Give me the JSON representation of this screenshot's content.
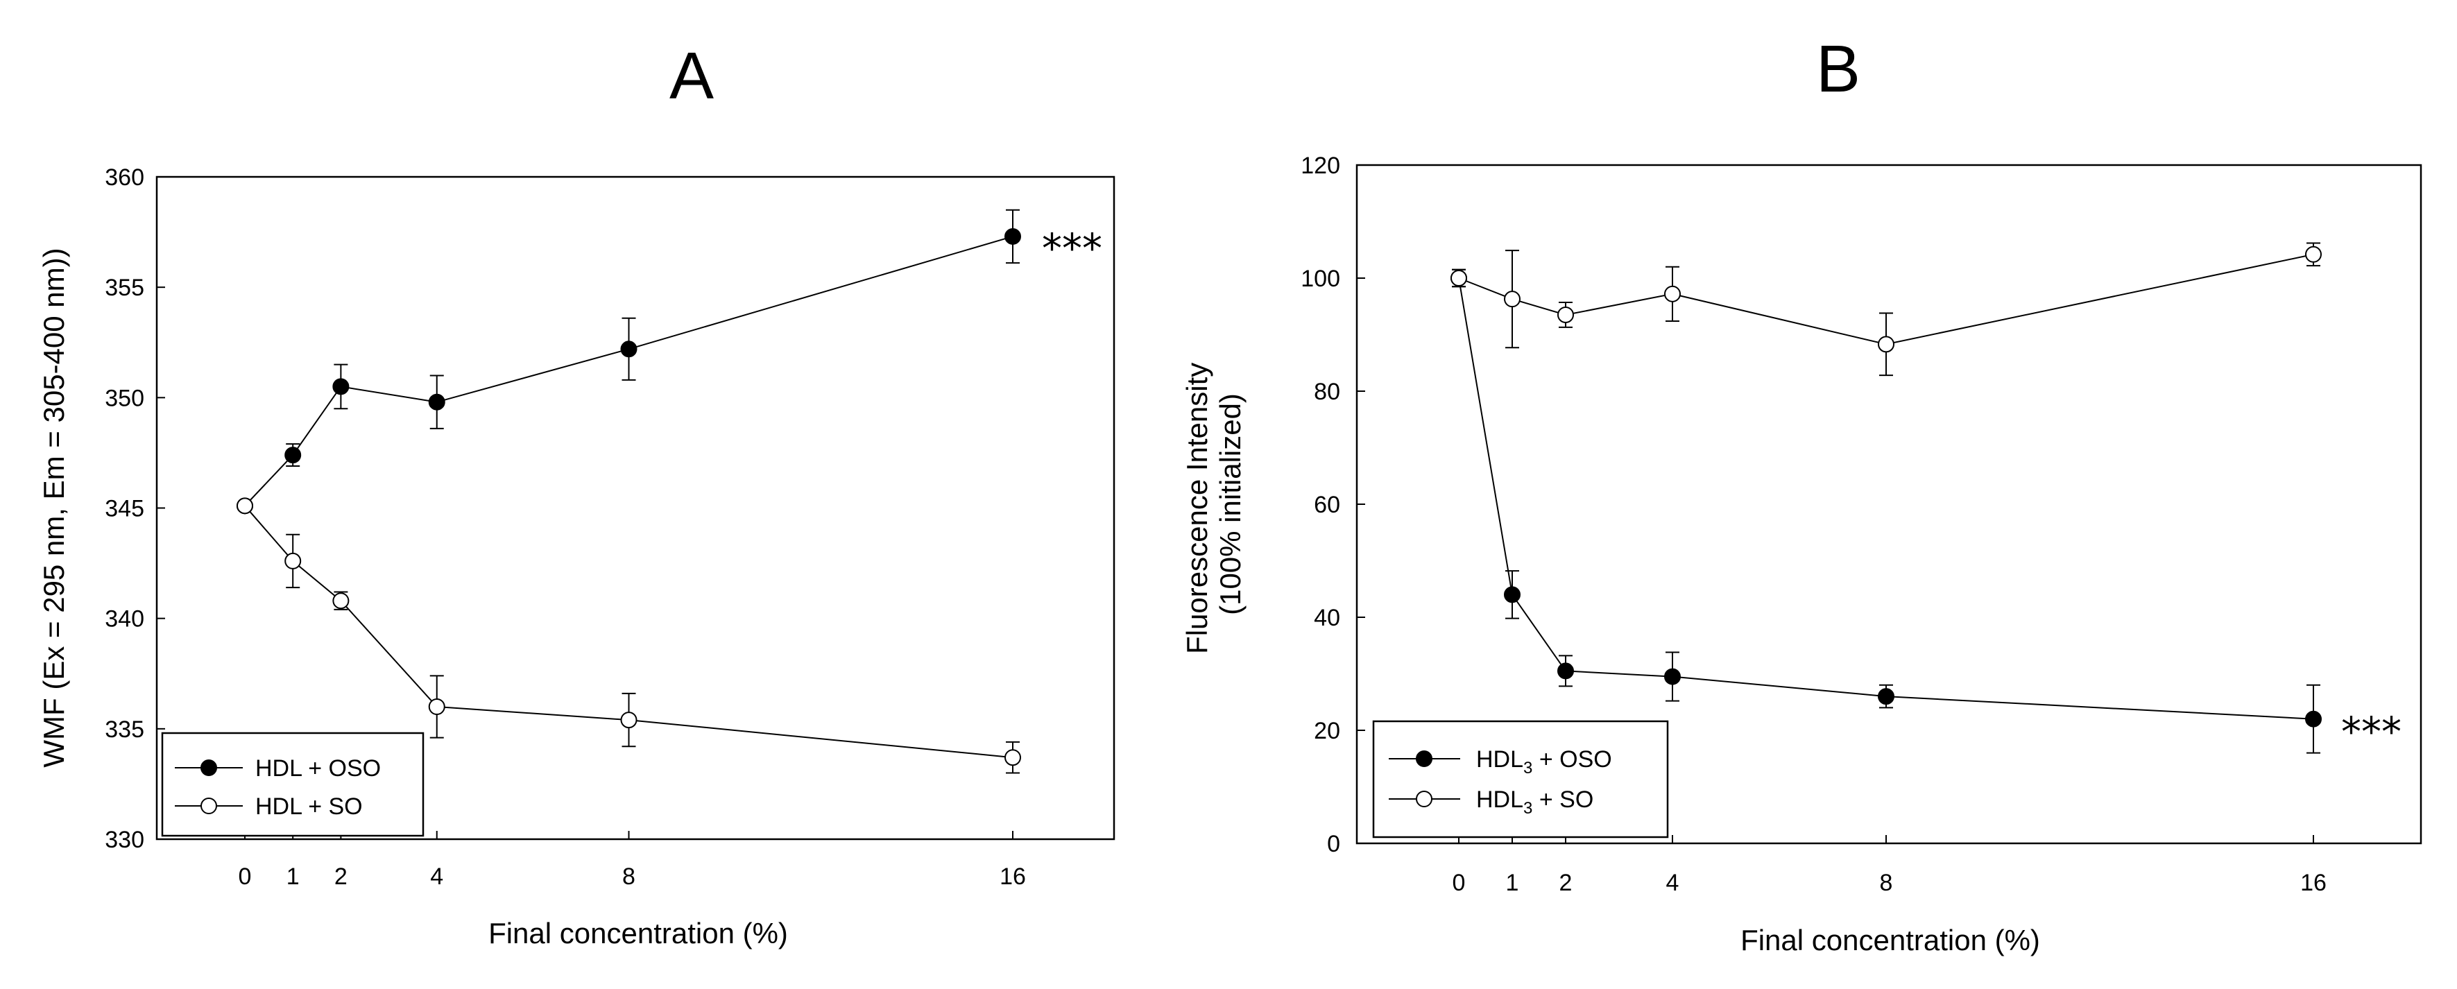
{
  "chart_data": [
    {
      "panel": "A",
      "type": "line",
      "title": "A",
      "xlabel": "Final concentration (%)",
      "ylabel": "WMF (Ex = 295 nm, Em = 305-400 nm))",
      "ylim": [
        330,
        360
      ],
      "yticks": [
        "330",
        "335",
        "340",
        "345",
        "350",
        "355",
        "360"
      ],
      "x": [
        0,
        1,
        2,
        4,
        8,
        16
      ],
      "xticks": [
        "0",
        "1",
        "2",
        "4",
        "8",
        "16"
      ],
      "series": [
        {
          "name": "HDL + OSO",
          "marker": "filled",
          "values": [
            345.1,
            347.4,
            350.5,
            349.8,
            352.2,
            357.3
          ],
          "errors": [
            0,
            0.5,
            1.0,
            1.2,
            1.4,
            1.2
          ]
        },
        {
          "name": "HDL + SO",
          "marker": "open",
          "values": [
            345.1,
            342.6,
            340.8,
            336.0,
            335.4,
            333.7
          ],
          "errors": [
            0,
            1.2,
            0.4,
            1.4,
            1.2,
            0.7
          ]
        }
      ],
      "annotation": "***",
      "legend": "bottom-left"
    },
    {
      "panel": "B",
      "type": "line",
      "title": "B",
      "xlabel": "Final concentration (%)",
      "ylabel_line1": "Fluorescence Intensity",
      "ylabel_line2": "(100% initialized)",
      "ylim": [
        0,
        120
      ],
      "yticks": [
        "0",
        "20",
        "40",
        "60",
        "80",
        "100",
        "120"
      ],
      "x": [
        0,
        1,
        2,
        4,
        8,
        16
      ],
      "xticks": [
        "0",
        "1",
        "2",
        "4",
        "8",
        "16"
      ],
      "series": [
        {
          "name": "HDL3 + OSO",
          "label_base": "HDL",
          "label_sub": "3",
          "label_rest": " + OSO",
          "marker": "filled",
          "values": [
            100,
            44,
            30.5,
            29.5,
            26,
            22
          ],
          "errors": [
            1.5,
            4.2,
            2.7,
            4.3,
            2.0,
            6.0
          ]
        },
        {
          "name": "HDL3 + SO",
          "label_base": "HDL",
          "label_sub": "3",
          "label_rest": " + SO",
          "marker": "open",
          "values": [
            100,
            96.3,
            93.5,
            97.2,
            88.3,
            104.2
          ],
          "errors": [
            1.5,
            8.6,
            2.2,
            4.8,
            5.5,
            2.0
          ]
        }
      ],
      "annotation": "***",
      "legend": "bottom-left"
    }
  ]
}
